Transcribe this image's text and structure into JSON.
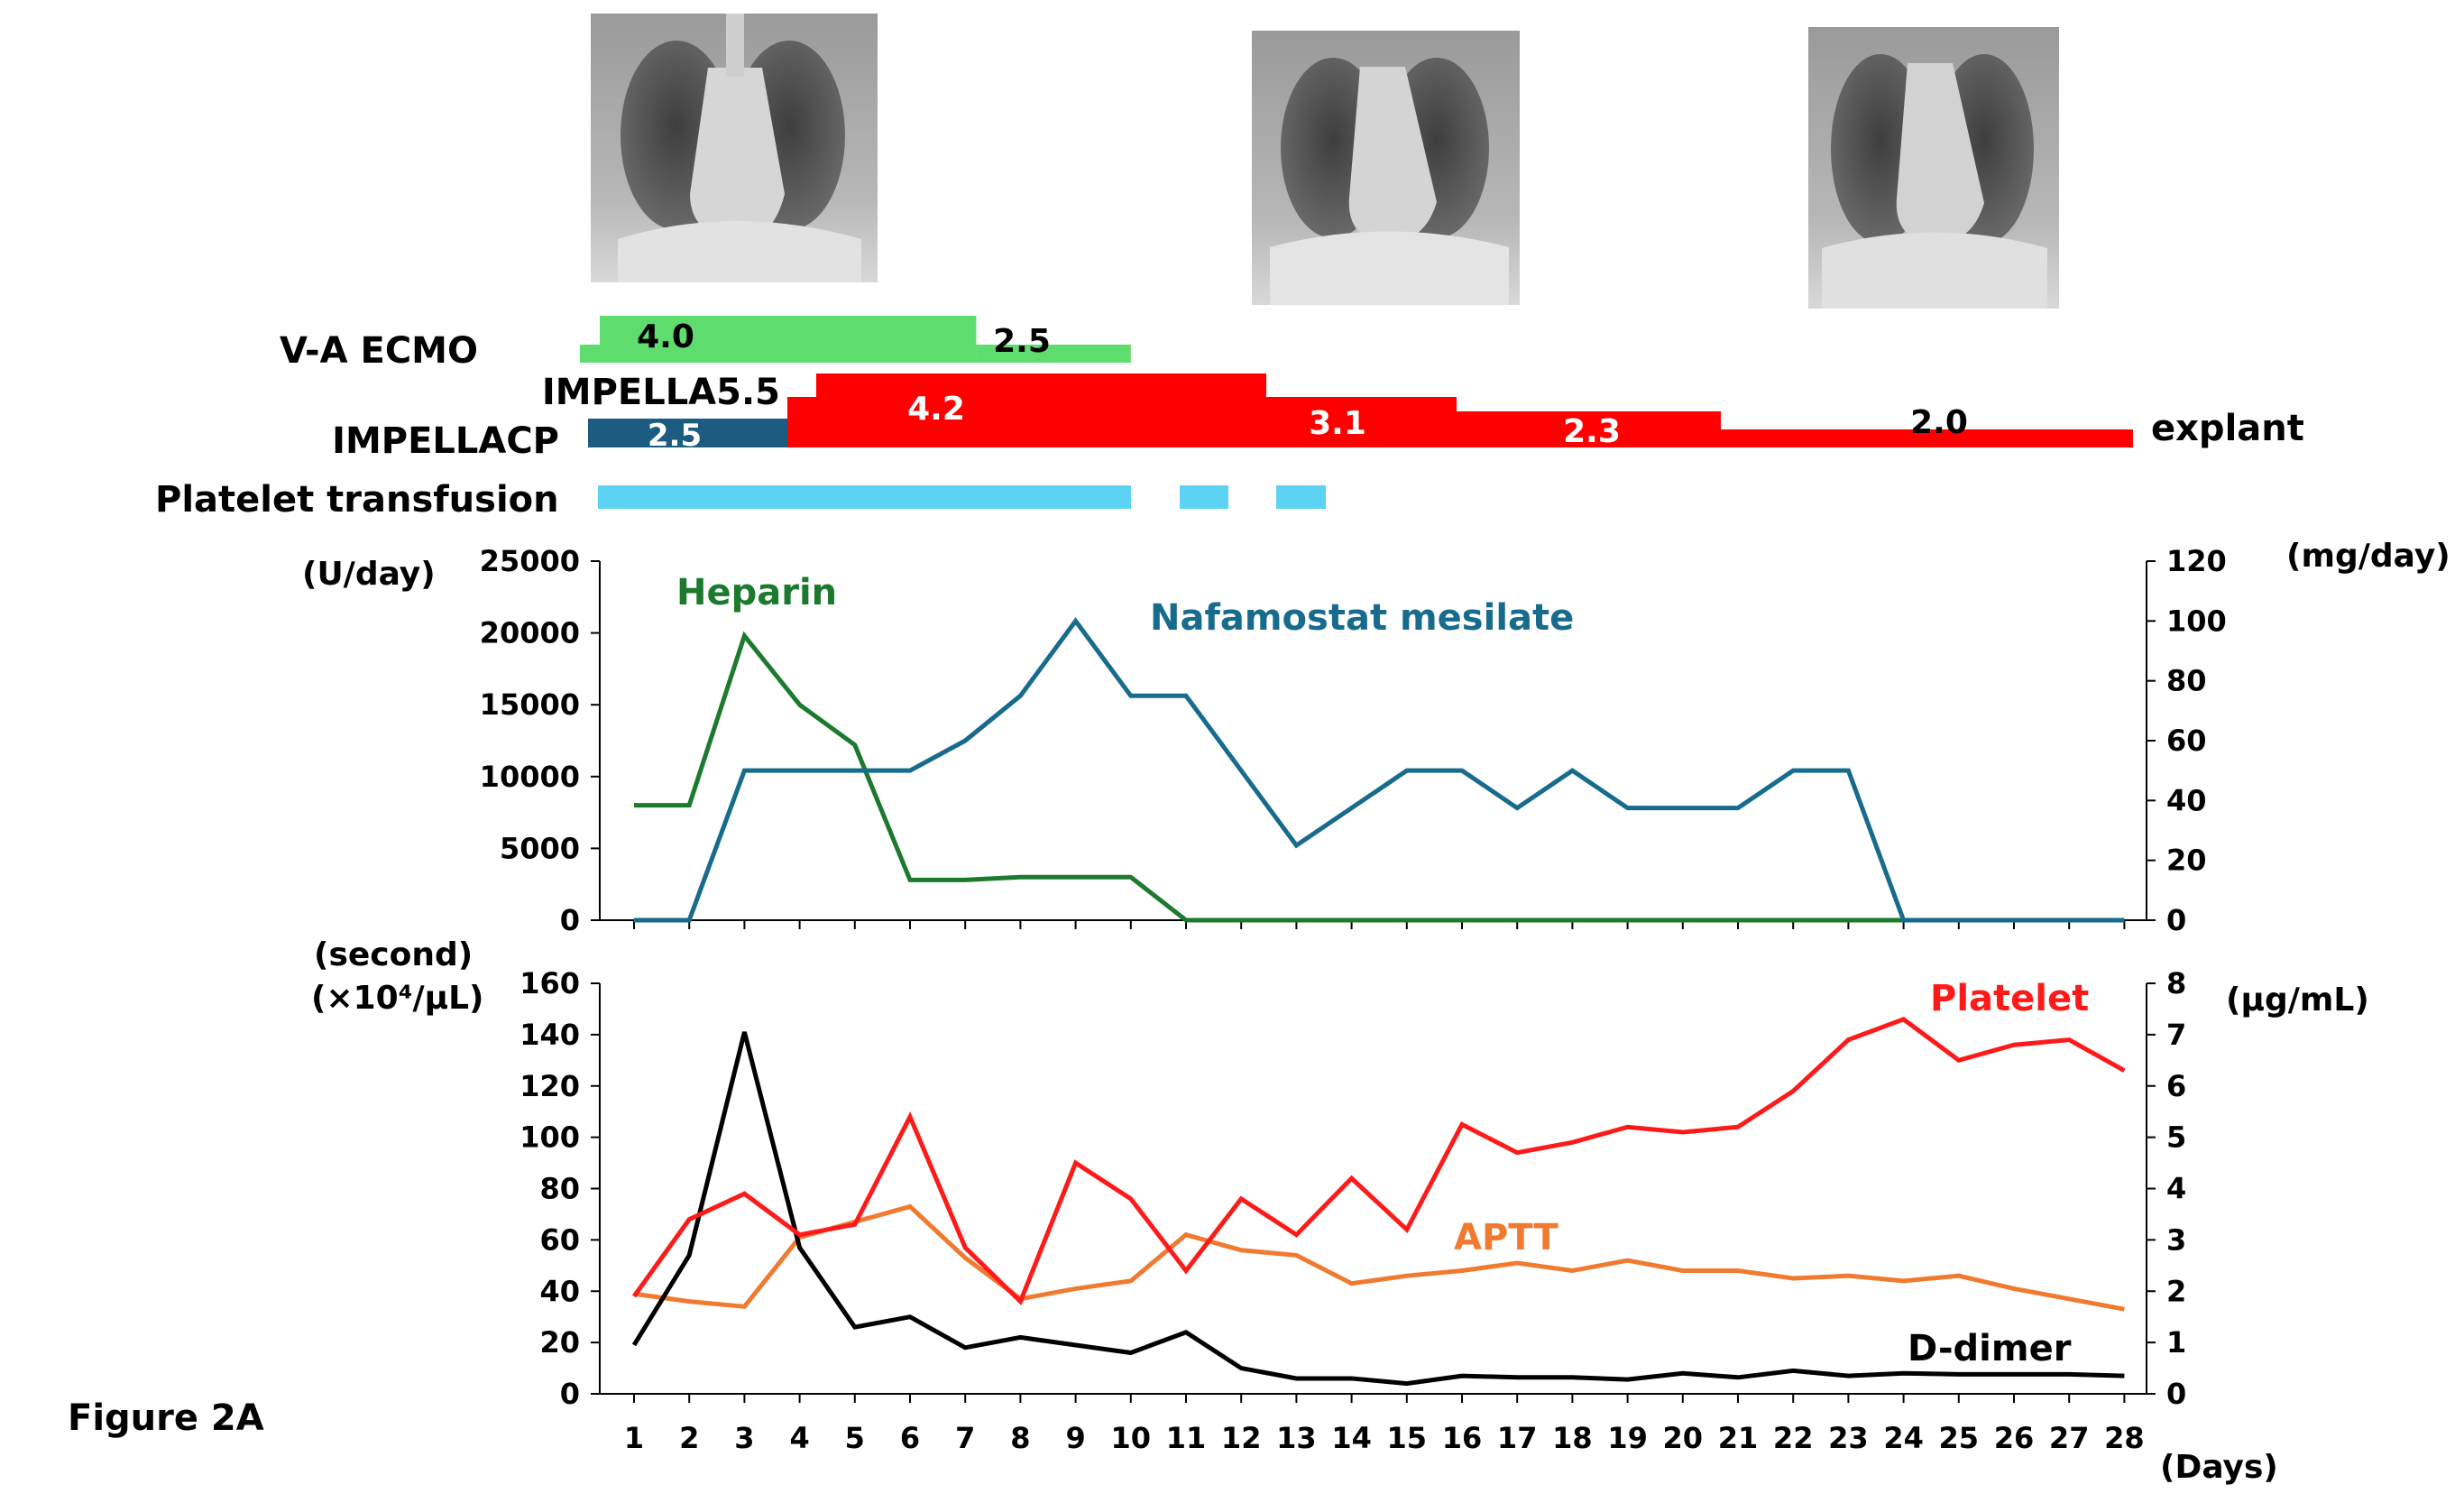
{
  "figure_label": "Figure 2A",
  "xray_images": [
    {
      "name": "chest-xray-1"
    },
    {
      "name": "chest-xray-2"
    },
    {
      "name": "chest-xray-3"
    }
  ],
  "devices": {
    "va_ecmo": {
      "label": "V-A ECMO",
      "segments": [
        {
          "start_day": 1,
          "end_day": 7.2,
          "flow": "4.0"
        },
        {
          "start_day": 7.2,
          "end_day": 10,
          "flow": "2.5"
        }
      ],
      "color": "#5FDC6E"
    },
    "impella55": {
      "label": "IMPELLA5.5",
      "segments": [
        {
          "start_day": 4,
          "end_day": 12.5,
          "flow": "4.2"
        },
        {
          "start_day": 12.5,
          "end_day": 16,
          "flow": "3.1"
        },
        {
          "start_day": 16,
          "end_day": 20.5,
          "flow": "2.3"
        },
        {
          "start_day": 20.5,
          "end_day": 28.3,
          "flow": "2.0"
        }
      ],
      "color": "#FF0000"
    },
    "impellacp": {
      "label": "IMPELLACP",
      "segments": [
        {
          "start_day": 0.9,
          "end_day": 4,
          "flow": "2.5"
        }
      ],
      "color": "#1C5C80"
    },
    "explant_label": "explant",
    "platelet_transfusion": {
      "label": "Platelet transfusion",
      "segments": [
        {
          "start_day": 1,
          "end_day": 10
        },
        {
          "start_day": 11,
          "end_day": 11.8
        },
        {
          "start_day": 12.6,
          "end_day": 13.5
        }
      ],
      "color": "#5DD3F3"
    }
  },
  "chart_data": [
    {
      "type": "line",
      "title": "",
      "x": [
        1,
        2,
        3,
        4,
        5,
        6,
        7,
        8,
        9,
        10,
        11,
        12,
        13,
        14,
        15,
        16,
        17,
        18,
        19,
        20,
        21,
        22,
        23,
        24,
        25,
        26,
        27,
        28
      ],
      "x_tick_labels": [
        "1",
        "2",
        "3",
        "4",
        "5",
        "6",
        "7",
        "8",
        "9",
        "10",
        "11",
        "12",
        "13",
        "14",
        "15",
        "16",
        "17",
        "18",
        "19",
        "20",
        "21",
        "22",
        "23",
        "24",
        "25",
        "26",
        "27",
        "28"
      ],
      "ylabel_left": "(U/day)",
      "ylabel_right": "(mg/day)",
      "ylim_left": [
        0,
        25000
      ],
      "ylim_right": [
        0,
        120
      ],
      "yticks_left": [
        "0",
        "5000",
        "10000",
        "15000",
        "20000",
        "25000"
      ],
      "yticks_right": [
        "0",
        "20",
        "40",
        "60",
        "80",
        "100",
        "120"
      ],
      "series": [
        {
          "name": "Heparin",
          "axis": "left",
          "color": "#1C7A2E",
          "values": [
            8000,
            8000,
            19800,
            15000,
            12200,
            2800,
            2800,
            3000,
            3000,
            3000,
            0,
            0,
            0,
            0,
            0,
            0,
            0,
            0,
            0,
            0,
            0,
            0,
            0,
            0,
            0,
            0,
            0,
            0
          ]
        },
        {
          "name": "Nafamostat mesilate",
          "axis": "right",
          "color": "#176B8C",
          "values": [
            0,
            0,
            50,
            50,
            50,
            50,
            60,
            75,
            100,
            75,
            75,
            null,
            25,
            null,
            50,
            50,
            37.5,
            50,
            37.5,
            37.5,
            37.5,
            50,
            50,
            0,
            0,
            0,
            0,
            0
          ],
          "points": [
            [
              1,
              0
            ],
            [
              2,
              0
            ],
            [
              3,
              50
            ],
            [
              4,
              50
            ],
            [
              5,
              50
            ],
            [
              6,
              50
            ],
            [
              7,
              60
            ],
            [
              8,
              75
            ],
            [
              9,
              100
            ],
            [
              10,
              75
            ],
            [
              11,
              75
            ],
            [
              13,
              25
            ],
            [
              15,
              50
            ],
            [
              16,
              50
            ],
            [
              17,
              37.5
            ],
            [
              18,
              50
            ],
            [
              19,
              37.5
            ],
            [
              20,
              37.5
            ],
            [
              21,
              37.5
            ],
            [
              22,
              50
            ],
            [
              23,
              50
            ],
            [
              24,
              0
            ],
            [
              25,
              0
            ],
            [
              26,
              0
            ],
            [
              27,
              0
            ],
            [
              28,
              0
            ]
          ]
        }
      ]
    },
    {
      "type": "line",
      "title": "",
      "x": [
        1,
        2,
        3,
        4,
        5,
        6,
        7,
        8,
        9,
        10,
        11,
        12,
        13,
        14,
        15,
        16,
        17,
        18,
        19,
        20,
        21,
        22,
        23,
        24,
        25,
        26,
        27,
        28
      ],
      "x_tick_labels": [
        "1",
        "2",
        "3",
        "4",
        "5",
        "6",
        "7",
        "8",
        "9",
        "10",
        "11",
        "12",
        "13",
        "14",
        "15",
        "16",
        "17",
        "18",
        "19",
        "20",
        "21",
        "22",
        "23",
        "24",
        "25",
        "26",
        "27",
        "28"
      ],
      "xlabel": "(Days)",
      "ylabel_left_line1": "(second)",
      "ylabel_left_line2": "(×10⁴/μL)",
      "ylabel_right": "(μg/mL)",
      "ylim_left": [
        0,
        160
      ],
      "ylim_right": [
        0,
        8
      ],
      "yticks_left": [
        "0",
        "20",
        "40",
        "60",
        "80",
        "100",
        "120",
        "140",
        "160"
      ],
      "yticks_right": [
        "0",
        "1",
        "2",
        "3",
        "4",
        "5",
        "6",
        "7",
        "8"
      ],
      "series": [
        {
          "name": "Platelet",
          "axis": "left",
          "color": "#FF1A1A",
          "values": [
            38,
            68,
            78,
            62,
            66,
            108,
            57,
            36,
            90,
            76,
            48,
            76,
            62,
            84,
            64,
            105,
            94,
            98,
            104,
            102,
            104,
            118,
            138,
            146,
            130,
            136,
            138,
            126
          ]
        },
        {
          "name": "APTT",
          "axis": "left",
          "color": "#F07A30",
          "values": [
            39,
            36,
            34,
            61,
            67,
            73,
            53,
            37,
            41,
            44,
            62,
            56,
            54,
            43,
            46,
            48,
            51,
            48,
            52,
            48,
            48,
            45,
            46,
            44,
            46,
            41,
            37,
            33
          ]
        },
        {
          "name": "D-dimer",
          "axis": "right",
          "color": "#000000",
          "values": [
            0.95,
            2.7,
            7.05,
            2.85,
            1.3,
            1.5,
            0.9,
            1.1,
            0.95,
            0.8,
            1.2,
            0.5,
            0.3,
            0.3,
            0.2,
            0.35,
            0.32,
            0.32,
            0.28,
            0.4,
            0.32,
            0.45,
            0.35,
            0.4,
            0.38,
            0.38,
            0.38,
            0.35
          ]
        }
      ]
    }
  ]
}
